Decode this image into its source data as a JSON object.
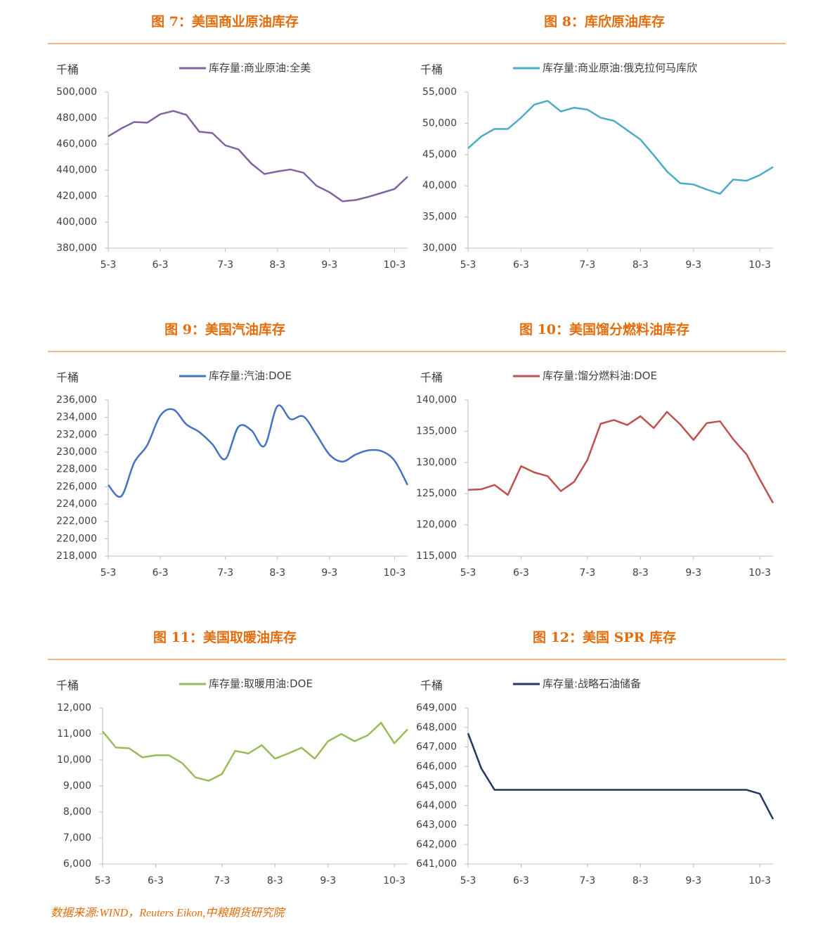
{
  "chart_data": [
    {
      "type": "line",
      "title": "图 7：美国商业原油库存",
      "y_label": "千桶",
      "categories": [
        "5-3",
        null,
        null,
        null,
        "6-3",
        null,
        null,
        null,
        null,
        "7-3",
        null,
        null,
        null,
        "8-3",
        null,
        null,
        null,
        "9-3",
        null,
        null,
        null,
        null,
        "10-3",
        null
      ],
      "series": [
        {
          "name": "库存量:商业原油:全美",
          "color": "#8064a2",
          "values": [
            466000,
            472000,
            477000,
            476500,
            483000,
            485500,
            482500,
            469500,
            468500,
            459000,
            456000,
            445000,
            437000,
            439000,
            440500,
            438000,
            428000,
            423000,
            416000,
            417000,
            419500,
            422500,
            425500,
            435000
          ]
        }
      ],
      "ylim": [
        380000,
        500000
      ],
      "yticks": [
        {
          "value": 380000,
          "label": "380,000"
        },
        {
          "value": 400000,
          "label": "400,000"
        },
        {
          "value": 420000,
          "label": "420,000"
        },
        {
          "value": 440000,
          "label": "440,000"
        },
        {
          "value": 460000,
          "label": "460,000"
        },
        {
          "value": 480000,
          "label": "480,000"
        },
        {
          "value": 500000,
          "label": "500,000"
        }
      ]
    },
    {
      "type": "line",
      "title": "图 8：库欣原油库存",
      "y_label": "千桶",
      "categories": [
        "5-3",
        null,
        null,
        null,
        "6-3",
        null,
        null,
        null,
        null,
        "7-3",
        null,
        null,
        null,
        "8-3",
        null,
        null,
        null,
        "9-3",
        null,
        null,
        null,
        null,
        "10-3",
        null
      ],
      "series": [
        {
          "name": "库存量:商业原油:俄克拉何马库欣",
          "color": "#4bacc6",
          "values": [
            46000,
            47900,
            49100,
            49100,
            50900,
            53000,
            53600,
            51900,
            52500,
            52200,
            50900,
            50400,
            48900,
            47400,
            44900,
            42300,
            40400,
            40200,
            39400,
            38700,
            41000,
            40800,
            41700,
            43000
          ]
        }
      ],
      "ylim": [
        30000,
        55000
      ],
      "yticks": [
        {
          "value": 30000,
          "label": "30,000"
        },
        {
          "value": 35000,
          "label": "35,000"
        },
        {
          "value": 40000,
          "label": "40,000"
        },
        {
          "value": 45000,
          "label": "45,000"
        },
        {
          "value": 50000,
          "label": "50,000"
        },
        {
          "value": 55000,
          "label": "55,000"
        }
      ]
    },
    {
      "type": "line",
      "title": "图 9：美国汽油库存",
      "y_label": "千桶",
      "smooth": true,
      "categories": [
        "5-3",
        null,
        null,
        null,
        "6-3",
        null,
        null,
        null,
        null,
        "7-3",
        null,
        null,
        null,
        "8-3",
        null,
        null,
        null,
        "9-3",
        null,
        null,
        null,
        null,
        "10-3",
        null
      ],
      "series": [
        {
          "name": "库存量:汽油:DOE",
          "color": "#4472c4",
          "values": [
            226200,
            224900,
            228800,
            230800,
            234200,
            234900,
            233200,
            232300,
            230900,
            229200,
            232900,
            232500,
            230700,
            235300,
            233800,
            234100,
            232000,
            229700,
            228900,
            229700,
            230200,
            230100,
            229000,
            226200
          ]
        }
      ],
      "ylim": [
        218000,
        236000
      ],
      "yticks": [
        {
          "value": 218000,
          "label": "218,000"
        },
        {
          "value": 220000,
          "label": "220,000"
        },
        {
          "value": 222000,
          "label": "222,000"
        },
        {
          "value": 224000,
          "label": "224,000"
        },
        {
          "value": 226000,
          "label": "226,000"
        },
        {
          "value": 228000,
          "label": "228,000"
        },
        {
          "value": 230000,
          "label": "230,000"
        },
        {
          "value": 232000,
          "label": "232,000"
        },
        {
          "value": 234000,
          "label": "234,000"
        },
        {
          "value": 236000,
          "label": "236,000"
        }
      ]
    },
    {
      "type": "line",
      "title": "图 10：美国馏分燃料油库存",
      "y_label": "千桶",
      "categories": [
        "5-3",
        null,
        null,
        null,
        "6-3",
        null,
        null,
        null,
        null,
        "7-3",
        null,
        null,
        null,
        "8-3",
        null,
        null,
        null,
        "9-3",
        null,
        null,
        null,
        null,
        "10-3",
        null
      ],
      "series": [
        {
          "name": "库存量:馏分燃料油:DOE",
          "color": "#c0504d",
          "values": [
            125600,
            125700,
            126400,
            124800,
            129400,
            128400,
            127800,
            125400,
            126900,
            130400,
            136200,
            136800,
            136000,
            137400,
            135500,
            138100,
            136100,
            133600,
            136300,
            136600,
            133700,
            131300,
            127300,
            123500
          ]
        }
      ],
      "ylim": [
        115000,
        140000
      ],
      "yticks": [
        {
          "value": 115000,
          "label": "115,000"
        },
        {
          "value": 120000,
          "label": "120,000"
        },
        {
          "value": 125000,
          "label": "125,000"
        },
        {
          "value": 130000,
          "label": "130,000"
        },
        {
          "value": 135000,
          "label": "135,000"
        },
        {
          "value": 140000,
          "label": "140,000"
        }
      ]
    },
    {
      "type": "line",
      "title": "图 11：美国取暖油库存",
      "y_label": "千桶",
      "categories": [
        "5-3",
        null,
        null,
        null,
        "6-3",
        null,
        null,
        null,
        null,
        "7-3",
        null,
        null,
        null,
        "8-3",
        null,
        null,
        null,
        "9-3",
        null,
        null,
        null,
        null,
        "10-3",
        null
      ],
      "series": [
        {
          "name": "库存量:取暖用油:DOE",
          "color": "#9bbb59",
          "values": [
            11100,
            10480,
            10450,
            10100,
            10180,
            10180,
            9880,
            9330,
            9200,
            9460,
            10350,
            10250,
            10570,
            10050,
            10250,
            10470,
            10050,
            10720,
            11000,
            10720,
            10950,
            11430,
            10640,
            11180
          ]
        }
      ],
      "ylim": [
        6000,
        12000
      ],
      "yticks": [
        {
          "value": 6000,
          "label": "6,000"
        },
        {
          "value": 7000,
          "label": "7,000"
        },
        {
          "value": 8000,
          "label": "8,000"
        },
        {
          "value": 9000,
          "label": "9,000"
        },
        {
          "value": 10000,
          "label": "10,000"
        },
        {
          "value": 11000,
          "label": "11,000"
        },
        {
          "value": 12000,
          "label": "12,000"
        }
      ]
    },
    {
      "type": "line",
      "title": "图 12：美国 SPR 库存",
      "y_label": "千桶",
      "categories": [
        "5-3",
        null,
        null,
        null,
        "6-3",
        null,
        null,
        null,
        null,
        "7-3",
        null,
        null,
        null,
        "8-3",
        null,
        null,
        null,
        "9-3",
        null,
        null,
        null,
        null,
        "10-3",
        null
      ],
      "series": [
        {
          "name": "库存量:战略石油储备",
          "color": "#1f3864",
          "values": [
            647700,
            645900,
            644800,
            644800,
            644800,
            644800,
            644800,
            644800,
            644800,
            644800,
            644800,
            644800,
            644800,
            644800,
            644800,
            644800,
            644800,
            644800,
            644800,
            644800,
            644800,
            644800,
            644600,
            643300
          ]
        }
      ],
      "ylim": [
        641000,
        649000
      ],
      "yticks": [
        {
          "value": 641000,
          "label": "641,000"
        },
        {
          "value": 642000,
          "label": "642,000"
        },
        {
          "value": 643000,
          "label": "643,000"
        },
        {
          "value": 644000,
          "label": "644,000"
        },
        {
          "value": 645000,
          "label": "645,000"
        },
        {
          "value": 646000,
          "label": "646,000"
        },
        {
          "value": 647000,
          "label": "647,000"
        },
        {
          "value": 648000,
          "label": "648,000"
        },
        {
          "value": 649000,
          "label": "649,000"
        }
      ]
    }
  ],
  "source": "数据来源:WIND，Reuters Eikon,中粮期货研究院"
}
